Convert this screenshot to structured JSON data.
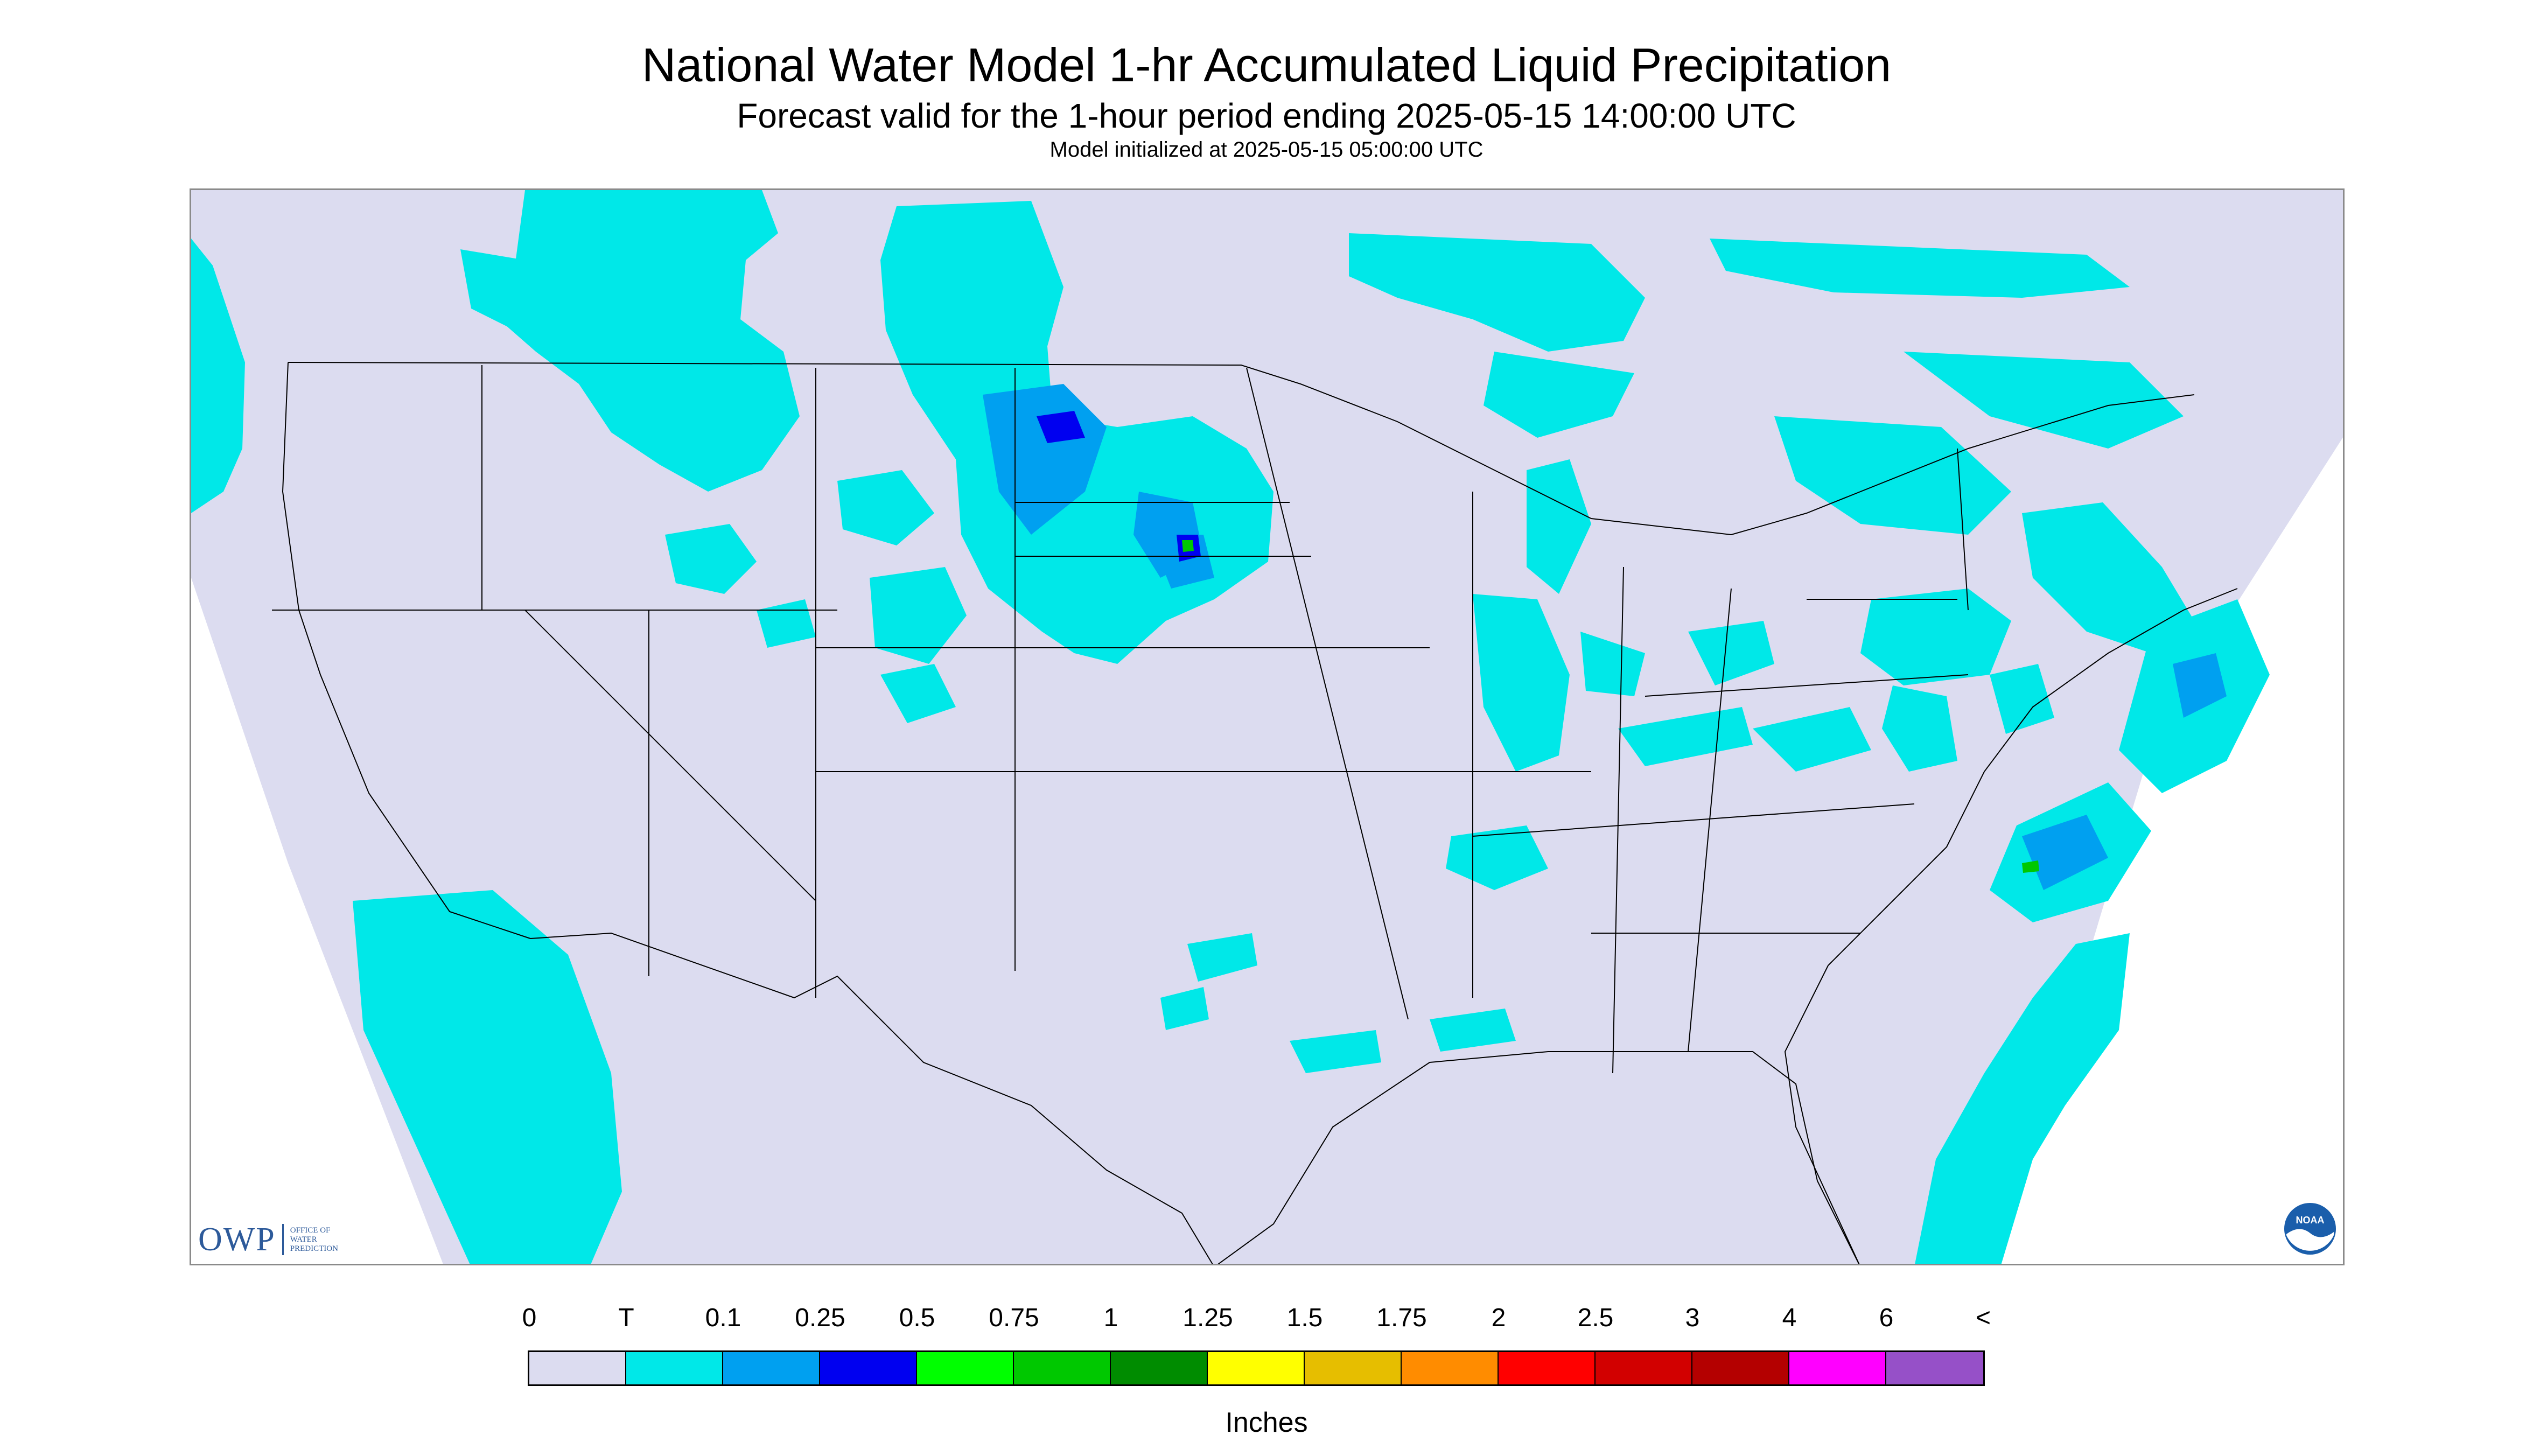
{
  "header": {
    "title": "National Water Model 1-hr Accumulated Liquid Precipitation",
    "subtitle": "Forecast valid for the 1-hour period ending 2025-05-15 14:00:00 UTC",
    "init_text": "Model initialized at 2025-05-15 05:00:00 UTC"
  },
  "map": {
    "background_color": "#dcdcf0",
    "no_data_color": "#ffffff",
    "boundary_color": "#000000"
  },
  "logos": {
    "owp_text": "OWP",
    "owp_subtext": [
      "OFFICE OF",
      "WATER",
      "PREDICTION"
    ],
    "noaa_text": "NOAA"
  },
  "legend": {
    "labels": [
      "0",
      "T",
      "0.1",
      "0.25",
      "0.5",
      "0.75",
      "1",
      "1.25",
      "1.5",
      "1.75",
      "2",
      "2.5",
      "3",
      "4",
      "6",
      "<"
    ],
    "colors": [
      "#dcdcf0",
      "#00e8e8",
      "#00a0f0",
      "#0000f0",
      "#00ff00",
      "#00c800",
      "#008c00",
      "#ffff00",
      "#e6be00",
      "#ff8c00",
      "#ff0000",
      "#d20000",
      "#b40000",
      "#ff00ff",
      "#9650c8"
    ],
    "units": "Inches"
  }
}
